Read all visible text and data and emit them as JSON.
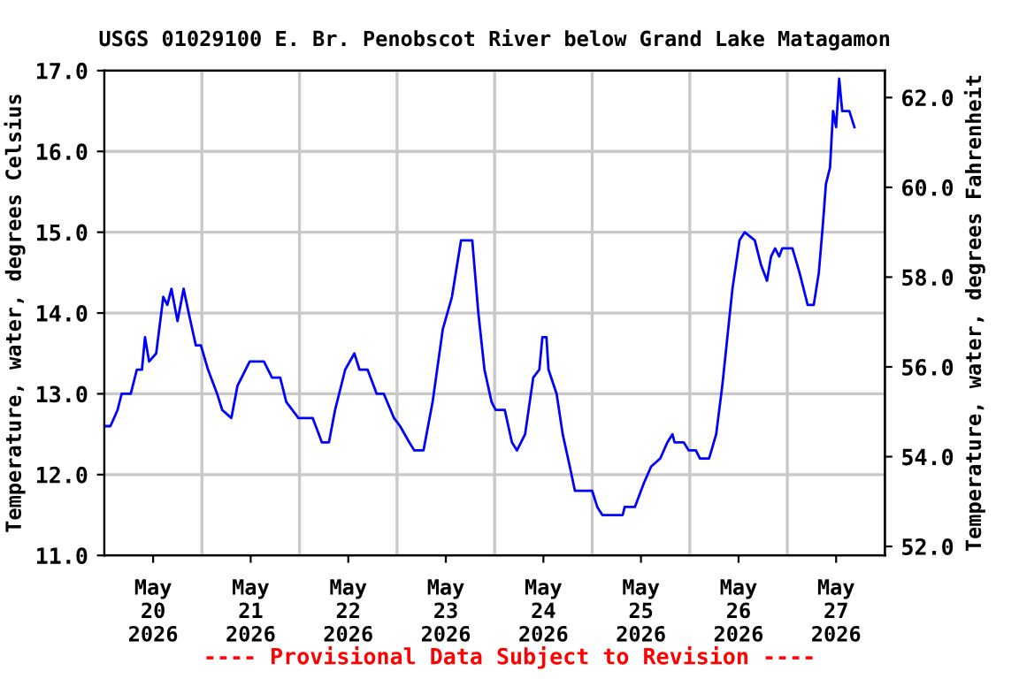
{
  "chart_data": {
    "type": "line",
    "title": "USGS 01029100 E. Br. Penobscot River below Grand Lake Matagamon",
    "ylabel": "Temperature, water, degrees Celsius",
    "y2label": "Temperature, water, degrees Fahrenheit",
    "annotations": [
      "---- Provisional Data Subject to Revision ----"
    ],
    "x": [
      "2026-05-20T00:00",
      "2026-05-20T01:30",
      "2026-05-20T03:15",
      "2026-05-20T04:15",
      "2026-05-20T06:30",
      "2026-05-20T08:00",
      "2026-05-20T09:15",
      "2026-05-20T10:00",
      "2026-05-20T11:00",
      "2026-05-20T12:45",
      "2026-05-20T14:30",
      "2026-05-20T15:30",
      "2026-05-20T16:30",
      "2026-05-20T18:00",
      "2026-05-20T19:30",
      "2026-05-20T20:45",
      "2026-05-20T22:30",
      "2026-05-20T23:45",
      "2026-05-21T01:30",
      "2026-05-21T03:45",
      "2026-05-21T05:00",
      "2026-05-21T07:15",
      "2026-05-21T08:45",
      "2026-05-21T11:45",
      "2026-05-21T15:15",
      "2026-05-21T17:15",
      "2026-05-21T19:15",
      "2026-05-21T20:45",
      "2026-05-21T23:45",
      "2026-05-22T03:15",
      "2026-05-22T05:30",
      "2026-05-22T07:15",
      "2026-05-22T08:45",
      "2026-05-22T11:15",
      "2026-05-22T13:30",
      "2026-05-22T14:45",
      "2026-05-22T16:45",
      "2026-05-22T19:00",
      "2026-05-22T20:45",
      "2026-05-22T23:15",
      "2026-05-23T00:45",
      "2026-05-23T03:00",
      "2026-05-23T04:15",
      "2026-05-23T06:30",
      "2026-05-23T08:45",
      "2026-05-23T11:15",
      "2026-05-23T13:30",
      "2026-05-23T15:45",
      "2026-05-23T18:30",
      "2026-05-23T20:00",
      "2026-05-23T21:30",
      "2026-05-23T23:15",
      "2026-05-24T00:15",
      "2026-05-24T02:30",
      "2026-05-24T04:15",
      "2026-05-24T05:30",
      "2026-05-24T07:30",
      "2026-05-24T09:30",
      "2026-05-24T11:00",
      "2026-05-24T11:45",
      "2026-05-24T12:45",
      "2026-05-24T13:15",
      "2026-05-24T15:15",
      "2026-05-24T16:45",
      "2026-05-24T18:30",
      "2026-05-24T19:45",
      "2026-05-25T00:00",
      "2026-05-25T01:15",
      "2026-05-25T02:30",
      "2026-05-25T07:30",
      "2026-05-25T08:00",
      "2026-05-25T10:30",
      "2026-05-25T12:45",
      "2026-05-25T14:30",
      "2026-05-25T16:45",
      "2026-05-25T18:30",
      "2026-05-25T19:45",
      "2026-05-25T20:15",
      "2026-05-25T22:30",
      "2026-05-25T23:45",
      "2026-05-26T01:30",
      "2026-05-26T02:30",
      "2026-05-26T04:45",
      "2026-05-26T06:30",
      "2026-05-26T08:00",
      "2026-05-26T09:15",
      "2026-05-26T10:30",
      "2026-05-26T12:15",
      "2026-05-26T13:30",
      "2026-05-26T16:00",
      "2026-05-26T17:30",
      "2026-05-26T19:00",
      "2026-05-26T20:00",
      "2026-05-26T21:00",
      "2026-05-26T22:00",
      "2026-05-26T22:45",
      "2026-05-27T01:15",
      "2026-05-27T03:00",
      "2026-05-27T04:30",
      "2026-05-27T05:00",
      "2026-05-27T06:30",
      "2026-05-27T07:45",
      "2026-05-27T08:45",
      "2026-05-27T09:30",
      "2026-05-27T10:30",
      "2026-05-27T11:15",
      "2026-05-27T12:00",
      "2026-05-27T12:45",
      "2026-05-27T13:30",
      "2026-05-27T15:15",
      "2026-05-27T16:30"
    ],
    "series": [
      {
        "color": "#0000ff",
        "values": [
          12.6,
          12.6,
          12.8,
          13.0,
          13.0,
          13.3,
          13.3,
          13.7,
          13.4,
          13.5,
          14.2,
          14.1,
          14.3,
          13.9,
          14.3,
          14.0,
          13.6,
          13.6,
          13.3,
          13.0,
          12.8,
          12.7,
          13.1,
          13.4,
          13.4,
          13.2,
          13.2,
          12.9,
          12.7,
          12.7,
          12.4,
          12.4,
          12.8,
          13.3,
          13.5,
          13.3,
          13.3,
          13.0,
          13.0,
          12.7,
          12.6,
          12.4,
          12.3,
          12.3,
          12.9,
          13.8,
          14.2,
          14.9,
          14.9,
          14.0,
          13.3,
          12.9,
          12.8,
          12.8,
          12.4,
          12.3,
          12.5,
          13.2,
          13.3,
          13.7,
          13.7,
          13.3,
          13.0,
          12.5,
          12.1,
          11.8,
          11.8,
          11.6,
          11.5,
          11.5,
          11.6,
          11.6,
          11.9,
          12.1,
          12.2,
          12.4,
          12.5,
          12.4,
          12.4,
          12.3,
          12.3,
          12.2,
          12.2,
          12.5,
          13.1,
          13.7,
          14.3,
          14.9,
          15.0,
          14.9,
          14.6,
          14.4,
          14.7,
          14.8,
          14.7,
          14.8,
          14.8,
          14.5,
          14.2,
          14.1,
          14.1,
          14.5,
          15.1,
          15.6,
          15.8,
          16.5,
          16.3,
          16.9,
          16.5,
          16.5,
          16.3
        ]
      }
    ],
    "xlim": [
      "2026-05-20T00:00",
      "2026-05-28T00:00"
    ],
    "xticks": [
      {
        "value": "2026-05-20T12:00",
        "label": "May\n20\n2026"
      },
      {
        "value": "2026-05-21T12:00",
        "label": "May\n21\n2026"
      },
      {
        "value": "2026-05-22T12:00",
        "label": "May\n22\n2026"
      },
      {
        "value": "2026-05-23T12:00",
        "label": "May\n23\n2026"
      },
      {
        "value": "2026-05-24T12:00",
        "label": "May\n24\n2026"
      },
      {
        "value": "2026-05-25T12:00",
        "label": "May\n25\n2026"
      },
      {
        "value": "2026-05-26T12:00",
        "label": "May\n26\n2026"
      },
      {
        "value": "2026-05-27T12:00",
        "label": "May\n27\n2026"
      },
      {
        "value": "2026-05-21T00:00",
        "label": null
      },
      {
        "value": "2026-05-22T00:00",
        "label": null
      },
      {
        "value": "2026-05-23T00:00",
        "label": null
      },
      {
        "value": "2026-05-24T00:00",
        "label": null
      },
      {
        "value": "2026-05-25T00:00",
        "label": null
      },
      {
        "value": "2026-05-26T00:00",
        "label": null
      },
      {
        "value": "2026-05-27T00:00",
        "label": null
      }
    ],
    "ylim": [
      11.0,
      17.0
    ],
    "yticks": [
      {
        "value": 11,
        "label": "11.0"
      },
      {
        "value": 12,
        "label": "12.0"
      },
      {
        "value": 13,
        "label": "13.0"
      },
      {
        "value": 14,
        "label": "14.0"
      },
      {
        "value": 15,
        "label": "15.0"
      },
      {
        "value": 16,
        "label": "16.0"
      },
      {
        "value": 17,
        "label": "17.0"
      }
    ],
    "y2lim": [
      51.8,
      62.6
    ],
    "y2ticks": [
      {
        "value": 52,
        "label": "52.0"
      },
      {
        "value": 54,
        "label": "54.0"
      },
      {
        "value": 56,
        "label": "56.0"
      },
      {
        "value": 58,
        "label": "58.0"
      },
      {
        "value": 60,
        "label": "60.0"
      },
      {
        "value": 62,
        "label": "62.0"
      }
    ],
    "grid": true,
    "legend": false
  }
}
